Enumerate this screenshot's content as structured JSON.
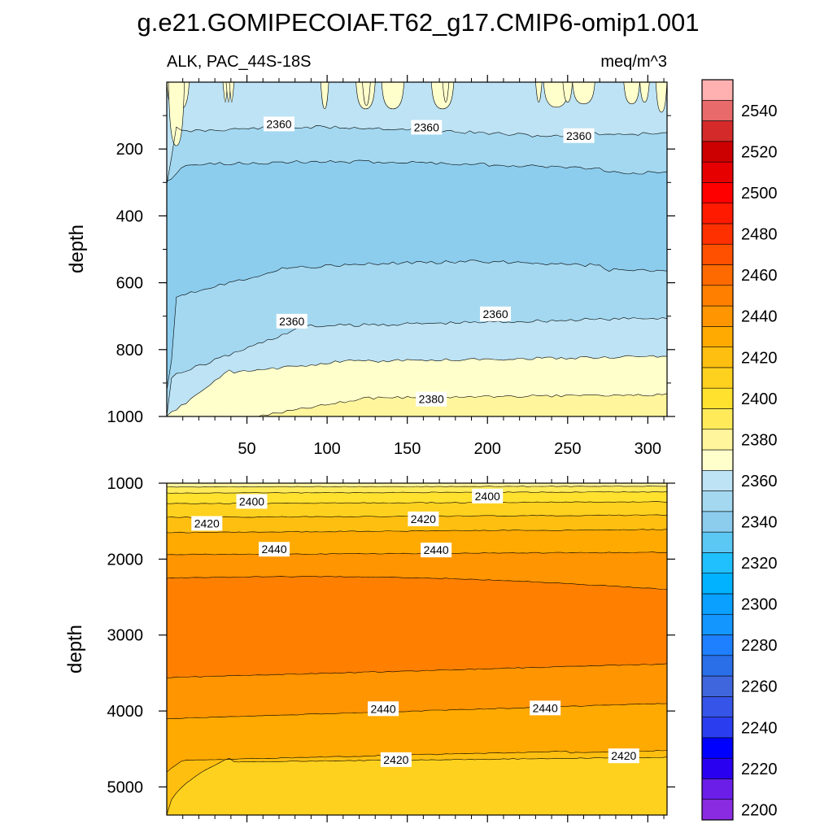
{
  "title": "g.e21.GOMIPECOIAF.T62_g17.CMIP6-omip1.001",
  "colors": {
    "c2200": "#8a2be2",
    "c2210": "#6a1ee8",
    "c2220": "#2a00f0",
    "c2230": "#0000ff",
    "c2240": "#2a3ef0",
    "c2250": "#3654e8",
    "c2260": "#3f66dd",
    "c2270": "#2a6ee8",
    "c2280": "#1e80ff",
    "c2290": "#1496ff",
    "c2300": "#0aa0ff",
    "c2310": "#00b2ff",
    "c2320": "#20c0ff",
    "c2330": "#5bc8f4",
    "c2340": "#8ccdee",
    "c2350": "#a3d8f0",
    "c2360": "#bde3f4",
    "c2370": "#ffffcc",
    "c2380": "#fff59d",
    "c2390": "#ffeb5a",
    "c2400": "#ffe12e",
    "c2410": "#ffd11f",
    "c2420": "#ffbf10",
    "c2430": "#ffaa00",
    "c2440": "#ff9500",
    "c2450": "#ff8000",
    "c2460": "#ff6a00",
    "c2470": "#ff5000",
    "c2480": "#ff3000",
    "c2490": "#ff1a00",
    "c2500": "#ff0000",
    "c2510": "#e60000",
    "c2520": "#cc0000",
    "c2530": "#d42a2a",
    "c2540": "#e86a6a",
    "c2550": "#ffb0b0"
  },
  "chart_data": [
    {
      "type": "contour",
      "subtitle_left": "ALK, PAC_44S-18S",
      "subtitle_right": "meq/m^3",
      "ylabel": "depth",
      "xlim": [
        0,
        312
      ],
      "ylim": [
        0,
        1000
      ],
      "x_ticks": [
        "50",
        "100",
        "150",
        "200",
        "250",
        "300"
      ],
      "y_ticks": [
        "200",
        "400",
        "600",
        "800",
        "1000"
      ],
      "contour_levels": [
        2340,
        2350,
        2360,
        2370,
        2380,
        2390
      ],
      "contour_labels": [
        {
          "text": "2360",
          "x": 70,
          "y": 125
        },
        {
          "text": "2360",
          "x": 162,
          "y": 135
        },
        {
          "text": "2360",
          "x": 257,
          "y": 160
        },
        {
          "text": "2360",
          "x": 78,
          "y": 715
        },
        {
          "text": "2360",
          "x": 205,
          "y": 693
        },
        {
          "text": "2380",
          "x": 165,
          "y": 948
        }
      ]
    },
    {
      "type": "contour",
      "ylabel": "depth",
      "xlim": [
        0,
        312
      ],
      "ylim": [
        1000,
        5370
      ],
      "y_ticks": [
        "1000",
        "2000",
        "3000",
        "4000",
        "5000"
      ],
      "contour_levels": [
        2400,
        2410,
        2420,
        2430,
        2440,
        2450,
        2460
      ],
      "contour_labels": [
        {
          "text": "2400",
          "x": 53,
          "y": 1240
        },
        {
          "text": "2400",
          "x": 200,
          "y": 1170
        },
        {
          "text": "2420",
          "x": 25,
          "y": 1530
        },
        {
          "text": "2420",
          "x": 160,
          "y": 1470
        },
        {
          "text": "2440",
          "x": 67,
          "y": 1870
        },
        {
          "text": "2440",
          "x": 168,
          "y": 1880
        },
        {
          "text": "2440",
          "x": 135,
          "y": 3970
        },
        {
          "text": "2440",
          "x": 236,
          "y": 3960
        },
        {
          "text": "2420",
          "x": 143,
          "y": 4640
        },
        {
          "text": "2420",
          "x": 285,
          "y": 4590
        }
      ]
    }
  ],
  "colorbar": {
    "labels": [
      "2200",
      "2220",
      "2240",
      "2260",
      "2280",
      "2300",
      "2320",
      "2340",
      "2360",
      "2380",
      "2400",
      "2420",
      "2440",
      "2460",
      "2480",
      "2500",
      "2520",
      "2540"
    ]
  }
}
